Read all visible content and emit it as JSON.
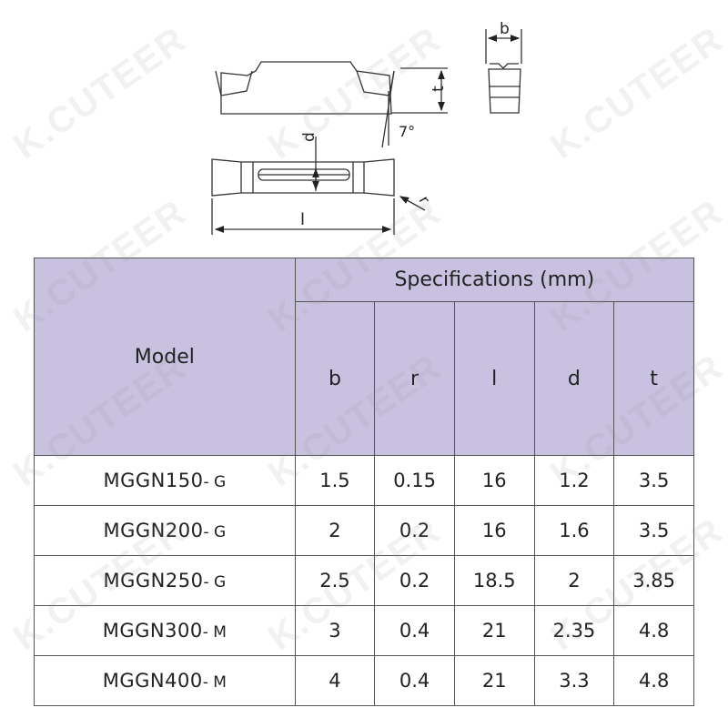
{
  "watermark": "K.CUTEER",
  "diagram": {
    "labels": {
      "b": "b",
      "t": "t",
      "angle": "7°",
      "d": "d",
      "r": "r",
      "l": "l"
    }
  },
  "table": {
    "model_header": "Model",
    "spec_header": "Specifications (mm)",
    "columns": [
      "b",
      "r",
      "l",
      "d",
      "t"
    ],
    "rows": [
      {
        "model": "MGGN150",
        "suffix": "- G",
        "values": [
          "1.5",
          "0.15",
          "16",
          "1.2",
          "3.5"
        ]
      },
      {
        "model": "MGGN200",
        "suffix": "- G",
        "values": [
          "2",
          "0.2",
          "16",
          "1.6",
          "3.5"
        ]
      },
      {
        "model": "MGGN250",
        "suffix": "- G",
        "values": [
          "2.5",
          "0.2",
          "18.5",
          "2",
          "3.85"
        ]
      },
      {
        "model": "MGGN300",
        "suffix": "- M",
        "values": [
          "3",
          "0.4",
          "21",
          "2.35",
          "4.8"
        ]
      },
      {
        "model": "MGGN400",
        "suffix": "- M",
        "values": [
          "4",
          "0.4",
          "21",
          "3.3",
          "4.8"
        ]
      }
    ]
  },
  "colors": {
    "header_bg": "#c8c1e0",
    "border": "#555555"
  }
}
